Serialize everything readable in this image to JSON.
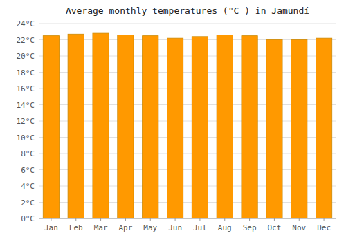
{
  "chart_data": {
    "type": "bar",
    "title": "Average monthly temperatures (°C ) in Jamundí",
    "categories": [
      "Jan",
      "Feb",
      "Mar",
      "Apr",
      "May",
      "Jun",
      "Jul",
      "Aug",
      "Sep",
      "Oct",
      "Nov",
      "Dec"
    ],
    "values": [
      22.5,
      22.7,
      22.8,
      22.6,
      22.5,
      22.2,
      22.4,
      22.6,
      22.5,
      22.0,
      22.0,
      22.2
    ],
    "color": "#ff9900",
    "ylim": [
      0,
      24
    ],
    "yticks": [
      {
        "value": 0,
        "label": "0°C"
      },
      {
        "value": 2,
        "label": "2°C"
      },
      {
        "value": 4,
        "label": "4°C"
      },
      {
        "value": 6,
        "label": "6°C"
      },
      {
        "value": 8,
        "label": "8°C"
      },
      {
        "value": 10,
        "label": "10°C"
      },
      {
        "value": 12,
        "label": "12°C"
      },
      {
        "value": 14,
        "label": "14°C"
      },
      {
        "value": 16,
        "label": "16°C"
      },
      {
        "value": 18,
        "label": "18°C"
      },
      {
        "value": 20,
        "label": "20°C"
      },
      {
        "value": 22,
        "label": "22°C"
      },
      {
        "value": 24,
        "label": "24°C"
      }
    ],
    "grid": true
  }
}
